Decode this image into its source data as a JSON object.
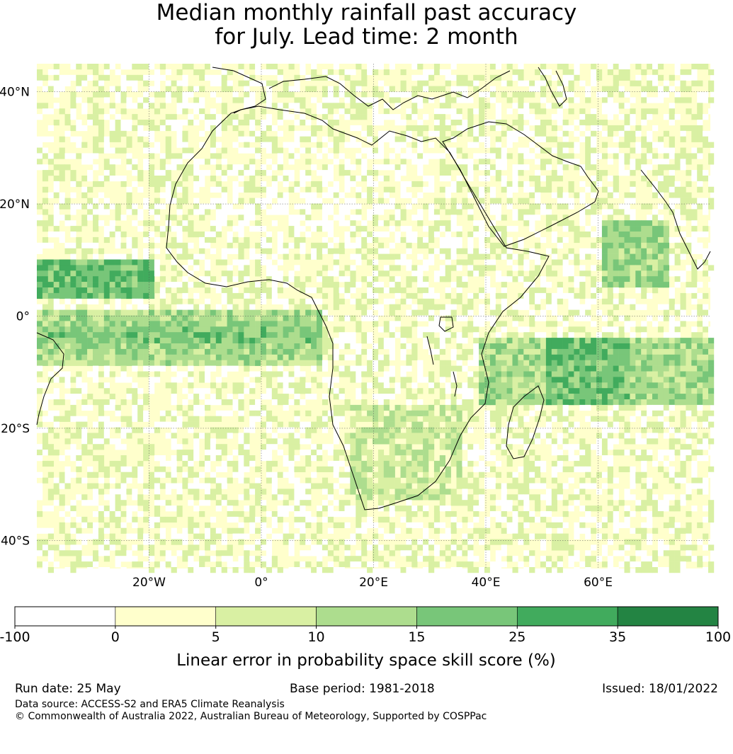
{
  "title": {
    "line1": "Median monthly rainfall past accuracy",
    "line2": "for July. Lead time: 2 month"
  },
  "map": {
    "lat_labels": [
      "40°N",
      "20°N",
      "0°",
      "20°S",
      "40°S"
    ],
    "lon_labels": [
      "20°W",
      "0°",
      "20°E",
      "40°E",
      "60°E"
    ],
    "extent": {
      "lon": [
        -40,
        80
      ],
      "lat": [
        -45,
        45
      ]
    },
    "colors": [
      "#ffffff",
      "#ffffcc",
      "#d9f0a3",
      "#addd8e",
      "#78c679",
      "#41ab5d",
      "#238443"
    ]
  },
  "colorbar": {
    "tick_labels": [
      "-100",
      "0",
      "5",
      "10",
      "15",
      "25",
      "35",
      "100"
    ],
    "label": "Linear error in probability space skill score (%)"
  },
  "footer": {
    "run_date": "Run date: 25 May",
    "base_period": "Base period: 1981-2018",
    "issued": "Issued: 18/01/2022",
    "data_source": "Data source: ACCESS-S2 and ERA5 Climate Reanalysis",
    "copyright": "© Commonwealth of Australia 2022, Australian Bureau of Meteorology, Supported by COSPPac"
  }
}
